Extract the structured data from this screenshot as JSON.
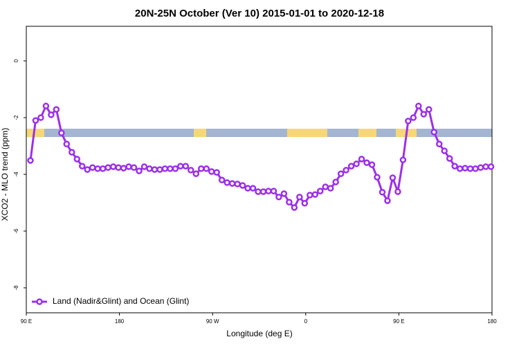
{
  "chart_data": {
    "type": "line",
    "title": "20N-25N October (Ver 10)   2015-01-01 to 2020-12-18",
    "x_label": "Longitude (deg E)",
    "y_label": "XCO2 - MLO trend (ppm)",
    "xlim": [
      90,
      540
    ],
    "ylim": [
      -8.88,
      1.22
    ],
    "xticks": [
      {
        "value": 90,
        "label": "90 E"
      },
      180,
      {
        "value": 270,
        "label": "90 W"
      },
      {
        "value": 360,
        "label": "0"
      },
      {
        "value": 450,
        "label": "90 E"
      },
      {
        "value": 540,
        "label": "180"
      }
    ],
    "yticks": [
      0,
      -2,
      -4,
      -6,
      -8
    ],
    "legend": "bottom-left",
    "x": [
      94,
      99,
      104,
      109,
      114,
      119,
      124,
      129,
      134,
      139,
      144,
      149,
      154,
      159,
      164,
      169,
      174,
      179,
      184,
      189,
      194,
      199,
      204,
      209,
      214,
      219,
      224,
      229,
      234,
      239,
      244,
      249,
      254,
      259,
      264,
      269,
      274,
      279,
      284,
      289,
      294,
      299,
      304,
      309,
      314,
      319,
      324,
      329,
      334,
      339,
      344,
      349,
      354,
      359,
      364,
      369,
      374,
      379,
      384,
      389,
      394,
      399,
      404,
      409,
      414,
      419,
      424,
      429,
      434,
      439,
      444,
      449,
      454,
      459,
      464,
      469,
      474,
      479,
      484,
      489,
      494,
      499,
      504,
      509,
      514,
      519,
      524,
      529,
      534,
      539
    ],
    "series": [
      {
        "name": "Land (Nadir&Glint) and Ocean (Glint)",
        "color": "#9b30e8",
        "values": [
          -3.51,
          -2.1,
          -2.0,
          -1.59,
          -1.9,
          -1.71,
          -2.54,
          -2.93,
          -3.22,
          -3.46,
          -3.71,
          -3.83,
          -3.76,
          -3.8,
          -3.8,
          -3.76,
          -3.73,
          -3.76,
          -3.78,
          -3.73,
          -3.76,
          -3.88,
          -3.73,
          -3.8,
          -3.83,
          -3.83,
          -3.8,
          -3.8,
          -3.8,
          -3.71,
          -3.71,
          -3.85,
          -3.98,
          -3.8,
          -3.8,
          -3.9,
          -3.93,
          -4.2,
          -4.29,
          -4.32,
          -4.34,
          -4.39,
          -4.49,
          -4.49,
          -4.61,
          -4.61,
          -4.59,
          -4.59,
          -4.8,
          -4.68,
          -4.98,
          -5.17,
          -4.8,
          -5.02,
          -4.73,
          -4.71,
          -4.59,
          -4.44,
          -4.49,
          -4.27,
          -3.98,
          -3.85,
          -3.71,
          -3.63,
          -3.46,
          -3.59,
          -3.66,
          -4.1,
          -4.63,
          -4.93,
          -4.12,
          -4.61,
          -3.49,
          -2.12,
          -2.0,
          -1.59,
          -1.88,
          -1.71,
          -2.51,
          -2.93,
          -3.17,
          -3.44,
          -3.71,
          -3.8,
          -3.78,
          -3.8,
          -3.8,
          -3.76,
          -3.73,
          -3.73
        ]
      }
    ]
  }
}
